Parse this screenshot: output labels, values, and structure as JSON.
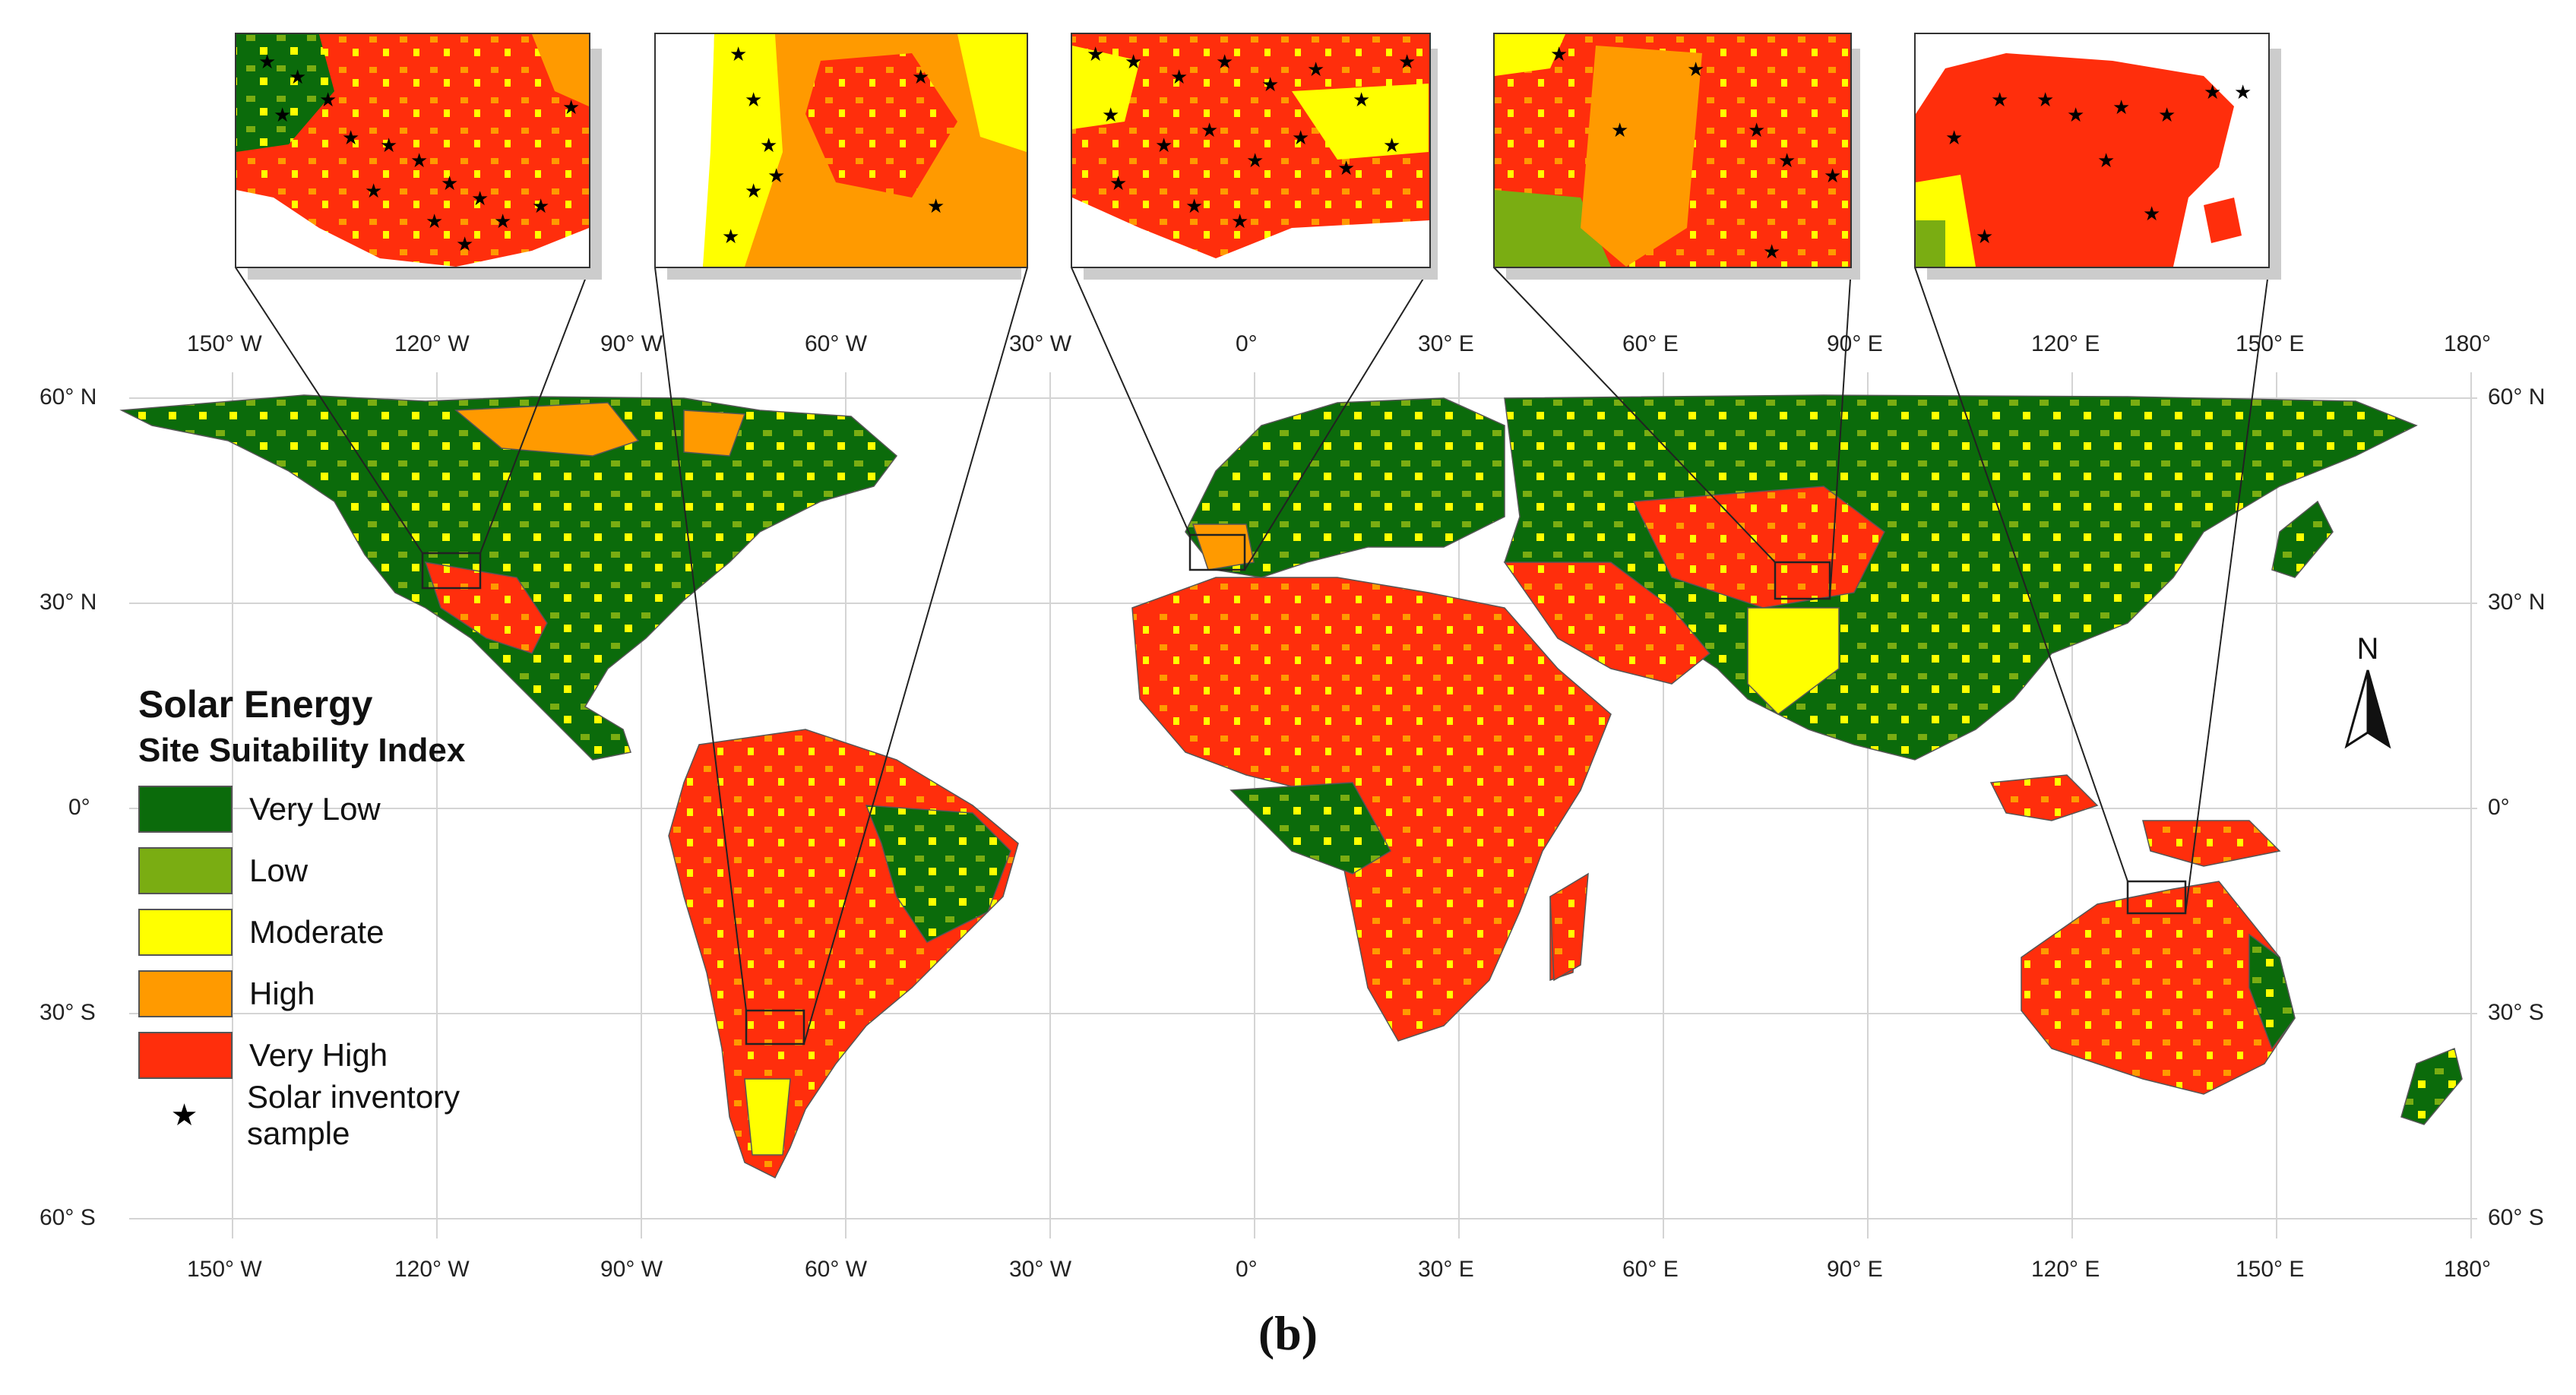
{
  "caption": "(b)",
  "legend": {
    "title": "Solar Energy",
    "subtitle": "Site Suitability Index",
    "classes": [
      {
        "label": "Very Low",
        "color": "#0b6b0b"
      },
      {
        "label": "Low",
        "color": "#7aad12"
      },
      {
        "label": "Moderate",
        "color": "#ffff00"
      },
      {
        "label": "High",
        "color": "#ff9a00"
      },
      {
        "label": "Very High",
        "color": "#ff2e0c"
      }
    ],
    "sample_label": "Solar inventory sample",
    "sample_symbol": "★"
  },
  "north_arrow": {
    "label": "N"
  },
  "axes": {
    "lon_labels": [
      "150° W",
      "120° W",
      "90° W",
      "60° W",
      "30° W",
      "0°",
      "30° E",
      "60° E",
      "90° E",
      "120° E",
      "150° E",
      "180°"
    ],
    "lat_labels": [
      "60° N",
      "30° N",
      "0°",
      "30° S",
      "60° S"
    ]
  },
  "insets": [
    {
      "name": "western-usa",
      "marker_lon": -118,
      "marker_lat": 35
    },
    {
      "name": "chile",
      "marker_lon": -70,
      "marker_lat": -32
    },
    {
      "name": "iberia",
      "marker_lon": -4,
      "marker_lat": 38
    },
    {
      "name": "tibet",
      "marker_lon": 82,
      "marker_lat": 34
    },
    {
      "name": "northern-australia",
      "marker_lon": 134,
      "marker_lat": -13
    }
  ]
}
